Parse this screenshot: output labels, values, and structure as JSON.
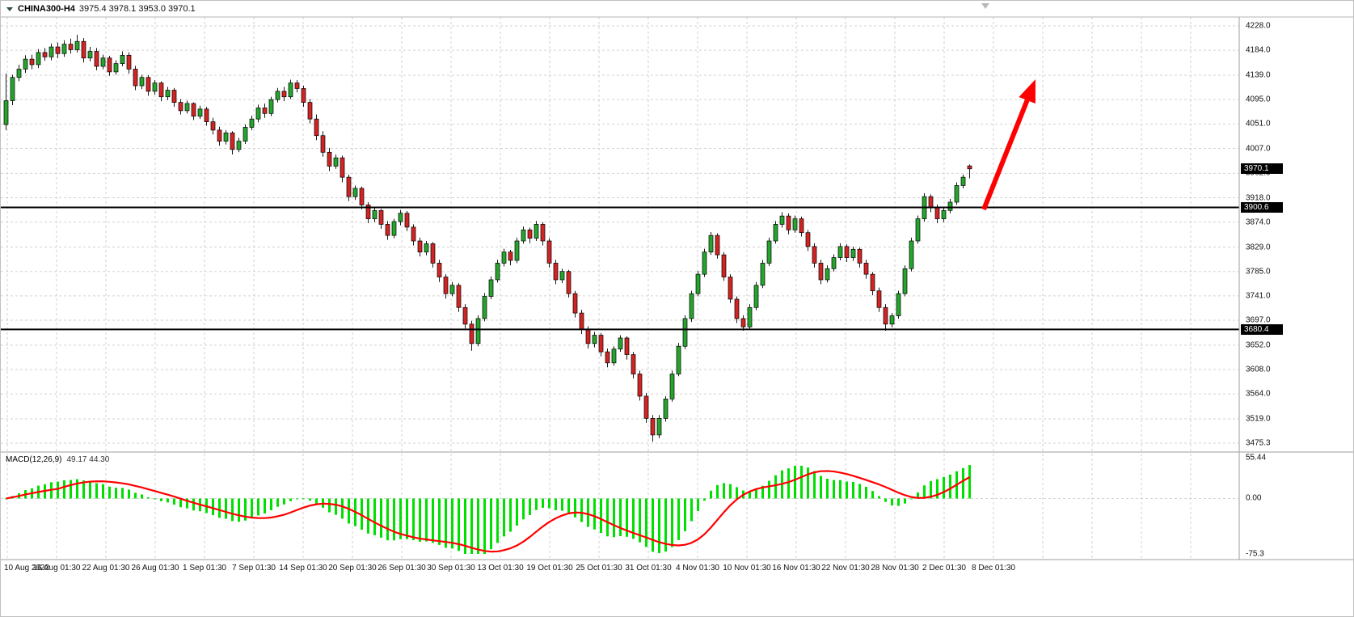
{
  "header": {
    "symbol": "CHINA300-H4",
    "ohlc": "3975.4 3978.1 3953.0 3970.1"
  },
  "indicator": {
    "label": "MACD(12,26,9)",
    "values": "49.17 44.30",
    "axis": {
      "max": "55.44",
      "zero": "0.00",
      "min": "-75.3"
    }
  },
  "price_axis": {
    "labels": [
      "4228.0",
      "4184.0",
      "4139.0",
      "4095.0",
      "4051.0",
      "4007.0",
      "3962.0",
      "3918.0",
      "3874.0",
      "3829.0",
      "3785.0",
      "3741.0",
      "3697.0",
      "3652.0",
      "3608.0",
      "3564.0",
      "3519.0",
      "3475.3"
    ],
    "current_price": "3970.1",
    "hline1": "3900.6",
    "hline2": "3680.4"
  },
  "time_axis": {
    "labels": [
      "10 Aug 2022",
      "16 Aug 01:30",
      "22 Aug 01:30",
      "26 Aug 01:30",
      "1 Sep 01:30",
      "7 Sep 01:30",
      "14 Sep 01:30",
      "20 Sep 01:30",
      "26 Sep 01:30",
      "30 Sep 01:30",
      "13 Oct 01:30",
      "19 Oct 01:30",
      "25 Oct 01:30",
      "31 Oct 01:30",
      "4 Nov 01:30",
      "10 Nov 01:30",
      "16 Nov 01:30",
      "22 Nov 01:30",
      "28 Nov 01:30",
      "2 Dec 01:30",
      "8 Dec 01:30"
    ]
  },
  "colors": {
    "background": "#ffffff",
    "text": "#000000",
    "grid": "#d2d2d2",
    "bull": "#25a52d",
    "bear": "#d32424",
    "wick": "#1a1a1a",
    "hline": "#000000",
    "macd_histogram": "#00e000",
    "macd_signal": "#ff0000",
    "arrow": "#ff0000",
    "badge_bg": "#000000",
    "badge_fg": "#ffffff"
  },
  "chart_data": {
    "type": "candlestick",
    "title": "CHINA300-H4",
    "timeframe": "H4",
    "price_range": {
      "min": 3475.3,
      "max": 4228.0
    },
    "y_ticks": [
      4228.0,
      4184.0,
      4139.0,
      4095.0,
      4051.0,
      4007.0,
      3962.0,
      3918.0,
      3874.0,
      3829.0,
      3785.0,
      3741.0,
      3697.0,
      3652.0,
      3608.0,
      3564.0,
      3519.0,
      3475.3
    ],
    "x_labels": [
      "10 Aug 2022",
      "16 Aug 01:30",
      "22 Aug 01:30",
      "26 Aug 01:30",
      "1 Sep 01:30",
      "7 Sep 01:30",
      "14 Sep 01:30",
      "20 Sep 01:30",
      "26 Sep 01:30",
      "30 Sep 01:30",
      "13 Oct 01:30",
      "19 Oct 01:30",
      "25 Oct 01:30",
      "31 Oct 01:30",
      "4 Nov 01:30",
      "10 Nov 01:30",
      "16 Nov 01:30",
      "22 Nov 01:30",
      "28 Nov 01:30",
      "2 Dec 01:30",
      "8 Dec 01:30"
    ],
    "last_price": 3970.1,
    "hlines": [
      3900.6,
      3680.4
    ],
    "arrow": {
      "from": [
        1216,
        258
      ],
      "to": [
        1280,
        97
      ],
      "color": "#ff0000"
    },
    "candles": [
      [
        4050,
        4142,
        4040,
        4093
      ],
      [
        4093,
        4140,
        4085,
        4135
      ],
      [
        4135,
        4158,
        4128,
        4150
      ],
      [
        4150,
        4175,
        4143,
        4168
      ],
      [
        4168,
        4176,
        4150,
        4158
      ],
      [
        4158,
        4186,
        4152,
        4180
      ],
      [
        4180,
        4188,
        4165,
        4172
      ],
      [
        4172,
        4196,
        4166,
        4190
      ],
      [
        4190,
        4198,
        4170,
        4178
      ],
      [
        4178,
        4202,
        4172,
        4195
      ],
      [
        4195,
        4205,
        4178,
        4185
      ],
      [
        4185,
        4212,
        4180,
        4200
      ],
      [
        4200,
        4206,
        4162,
        4170
      ],
      [
        4170,
        4190,
        4164,
        4182
      ],
      [
        4182,
        4188,
        4148,
        4155
      ],
      [
        4155,
        4176,
        4150,
        4170
      ],
      [
        4170,
        4174,
        4138,
        4145
      ],
      [
        4145,
        4166,
        4140,
        4160
      ],
      [
        4160,
        4182,
        4155,
        4175
      ],
      [
        4175,
        4180,
        4142,
        4150
      ],
      [
        4150,
        4156,
        4112,
        4120
      ],
      [
        4120,
        4140,
        4114,
        4135
      ],
      [
        4135,
        4139,
        4102,
        4110
      ],
      [
        4110,
        4130,
        4104,
        4125
      ],
      [
        4125,
        4128,
        4092,
        4100
      ],
      [
        4100,
        4118,
        4094,
        4112
      ],
      [
        4112,
        4116,
        4082,
        4090
      ],
      [
        4090,
        4096,
        4068,
        4075
      ],
      [
        4075,
        4093,
        4070,
        4088
      ],
      [
        4088,
        4090,
        4058,
        4065
      ],
      [
        4065,
        4084,
        4060,
        4078
      ],
      [
        4078,
        4082,
        4048,
        4055
      ],
      [
        4055,
        4062,
        4032,
        4040
      ],
      [
        4040,
        4046,
        4012,
        4020
      ],
      [
        4020,
        4040,
        4014,
        4035
      ],
      [
        4035,
        4038,
        3996,
        4005
      ],
      [
        4005,
        4026,
        4000,
        4020
      ],
      [
        4020,
        4050,
        4015,
        4045
      ],
      [
        4045,
        4066,
        4040,
        4060
      ],
      [
        4060,
        4086,
        4054,
        4080
      ],
      [
        4080,
        4088,
        4062,
        4070
      ],
      [
        4070,
        4100,
        4065,
        4095
      ],
      [
        4095,
        4116,
        4090,
        4110
      ],
      [
        4110,
        4118,
        4092,
        4100
      ],
      [
        4100,
        4131,
        4096,
        4125
      ],
      [
        4125,
        4130,
        4108,
        4115
      ],
      [
        4115,
        4120,
        4082,
        4090
      ],
      [
        4090,
        4096,
        4052,
        4060
      ],
      [
        4060,
        4068,
        4022,
        4030
      ],
      [
        4030,
        4038,
        3992,
        4000
      ],
      [
        4000,
        4008,
        3966,
        3975
      ],
      [
        3975,
        3996,
        3970,
        3990
      ],
      [
        3990,
        3994,
        3946,
        3955
      ],
      [
        3955,
        3960,
        3912,
        3920
      ],
      [
        3920,
        3940,
        3914,
        3935
      ],
      [
        3935,
        3938,
        3897,
        3905
      ],
      [
        3905,
        3910,
        3872,
        3880
      ],
      [
        3880,
        3900,
        3874,
        3895
      ],
      [
        3895,
        3898,
        3862,
        3870
      ],
      [
        3870,
        3876,
        3842,
        3850
      ],
      [
        3850,
        3880,
        3845,
        3875
      ],
      [
        3875,
        3896,
        3868,
        3890
      ],
      [
        3890,
        3894,
        3858,
        3865
      ],
      [
        3865,
        3870,
        3832,
        3840
      ],
      [
        3840,
        3846,
        3812,
        3820
      ],
      [
        3820,
        3840,
        3814,
        3835
      ],
      [
        3835,
        3838,
        3792,
        3800
      ],
      [
        3800,
        3806,
        3766,
        3775
      ],
      [
        3775,
        3780,
        3736,
        3745
      ],
      [
        3745,
        3766,
        3740,
        3760
      ],
      [
        3760,
        3764,
        3712,
        3720
      ],
      [
        3720,
        3726,
        3682,
        3690
      ],
      [
        3690,
        3696,
        3642,
        3655
      ],
      [
        3655,
        3706,
        3650,
        3700
      ],
      [
        3700,
        3746,
        3695,
        3740
      ],
      [
        3740,
        3776,
        3735,
        3770
      ],
      [
        3770,
        3806,
        3765,
        3800
      ],
      [
        3800,
        3826,
        3794,
        3820
      ],
      [
        3820,
        3824,
        3796,
        3805
      ],
      [
        3805,
        3846,
        3800,
        3840
      ],
      [
        3840,
        3866,
        3835,
        3860
      ],
      [
        3860,
        3864,
        3836,
        3845
      ],
      [
        3845,
        3876,
        3840,
        3870
      ],
      [
        3870,
        3874,
        3832,
        3840
      ],
      [
        3840,
        3845,
        3792,
        3800
      ],
      [
        3800,
        3806,
        3762,
        3770
      ],
      [
        3770,
        3790,
        3764,
        3785
      ],
      [
        3785,
        3788,
        3738,
        3745
      ],
      [
        3745,
        3750,
        3702,
        3710
      ],
      [
        3710,
        3716,
        3672,
        3680
      ],
      [
        3680,
        3686,
        3646,
        3655
      ],
      [
        3655,
        3676,
        3648,
        3670
      ],
      [
        3670,
        3674,
        3632,
        3640
      ],
      [
        3640,
        3646,
        3612,
        3620
      ],
      [
        3620,
        3650,
        3615,
        3645
      ],
      [
        3645,
        3670,
        3640,
        3665
      ],
      [
        3665,
        3668,
        3626,
        3635
      ],
      [
        3635,
        3640,
        3592,
        3600
      ],
      [
        3600,
        3606,
        3552,
        3560
      ],
      [
        3560,
        3566,
        3512,
        3520
      ],
      [
        3520,
        3526,
        3478,
        3490
      ],
      [
        3490,
        3526,
        3484,
        3520
      ],
      [
        3520,
        3560,
        3514,
        3555
      ],
      [
        3555,
        3606,
        3550,
        3600
      ],
      [
        3600,
        3656,
        3596,
        3650
      ],
      [
        3650,
        3706,
        3645,
        3700
      ],
      [
        3700,
        3750,
        3694,
        3745
      ],
      [
        3745,
        3786,
        3740,
        3780
      ],
      [
        3780,
        3826,
        3775,
        3820
      ],
      [
        3820,
        3856,
        3815,
        3850
      ],
      [
        3850,
        3854,
        3808,
        3815
      ],
      [
        3815,
        3820,
        3768,
        3775
      ],
      [
        3775,
        3780,
        3728,
        3735
      ],
      [
        3735,
        3740,
        3692,
        3700
      ],
      [
        3700,
        3706,
        3678,
        3685
      ],
      [
        3685,
        3726,
        3680,
        3720
      ],
      [
        3720,
        3766,
        3715,
        3760
      ],
      [
        3760,
        3806,
        3755,
        3800
      ],
      [
        3800,
        3846,
        3795,
        3840
      ],
      [
        3840,
        3876,
        3835,
        3870
      ],
      [
        3870,
        3892,
        3864,
        3885
      ],
      [
        3885,
        3890,
        3852,
        3860
      ],
      [
        3860,
        3886,
        3855,
        3880
      ],
      [
        3880,
        3884,
        3848,
        3855
      ],
      [
        3855,
        3860,
        3822,
        3830
      ],
      [
        3830,
        3836,
        3792,
        3800
      ],
      [
        3800,
        3806,
        3762,
        3770
      ],
      [
        3770,
        3796,
        3765,
        3790
      ],
      [
        3790,
        3816,
        3785,
        3810
      ],
      [
        3810,
        3836,
        3805,
        3830
      ],
      [
        3830,
        3834,
        3802,
        3810
      ],
      [
        3810,
        3830,
        3804,
        3825
      ],
      [
        3825,
        3828,
        3792,
        3800
      ],
      [
        3800,
        3806,
        3772,
        3780
      ],
      [
        3780,
        3784,
        3742,
        3750
      ],
      [
        3750,
        3756,
        3712,
        3720
      ],
      [
        3720,
        3726,
        3678,
        3690
      ],
      [
        3690,
        3710,
        3684,
        3705
      ],
      [
        3705,
        3750,
        3700,
        3745
      ],
      [
        3745,
        3796,
        3740,
        3790
      ],
      [
        3790,
        3846,
        3785,
        3840
      ],
      [
        3840,
        3886,
        3835,
        3880
      ],
      [
        3880,
        3926,
        3875,
        3920
      ],
      [
        3920,
        3924,
        3892,
        3900
      ],
      [
        3900,
        3906,
        3872,
        3880
      ],
      [
        3880,
        3900,
        3874,
        3895
      ],
      [
        3895,
        3916,
        3890,
        3910
      ],
      [
        3910,
        3946,
        3905,
        3940
      ],
      [
        3940,
        3960,
        3935,
        3955
      ],
      [
        3975.4,
        3978.1,
        3953.0,
        3970.1
      ]
    ],
    "macd": {
      "params": [
        12,
        26,
        9
      ],
      "macd_value": 49.17,
      "signal_value": 44.3,
      "axis_max": 55.44,
      "axis_min": -75.3
    }
  }
}
